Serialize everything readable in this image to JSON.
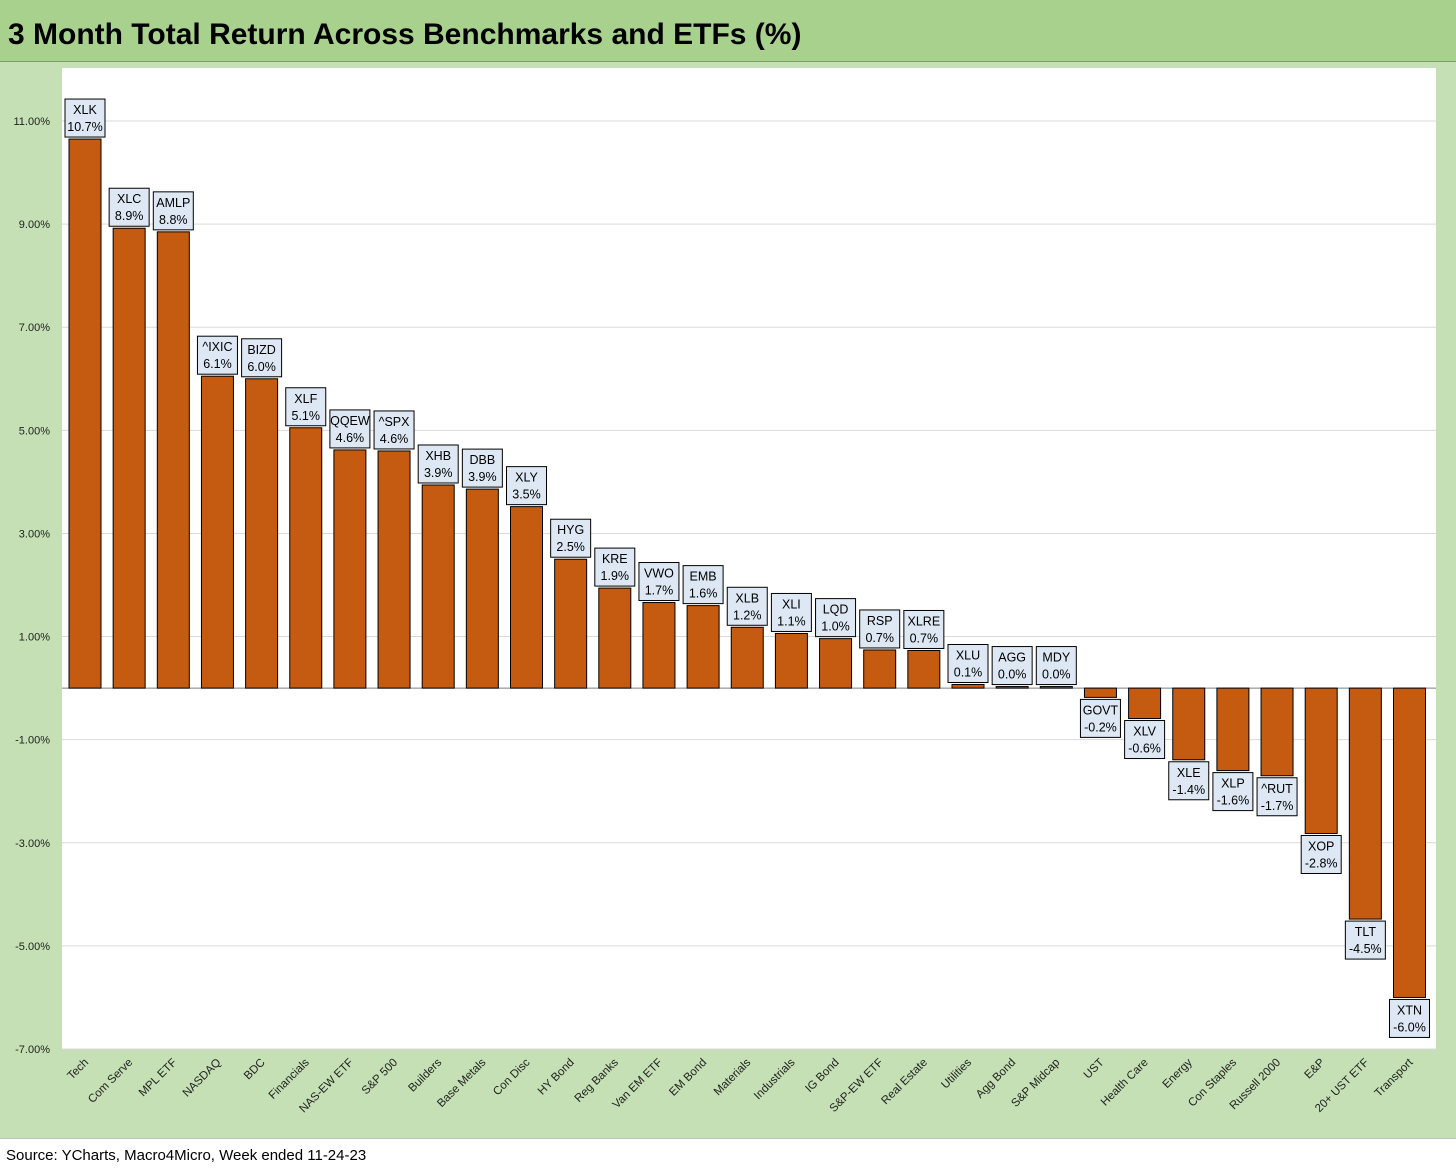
{
  "header": {
    "title": "3 Month Total Return Across Benchmarks and ETFs (%)"
  },
  "footer": {
    "source": "Source: YCharts, Macro4Micro, Week ended 11-24-23"
  },
  "colors": {
    "bar": "#c55a11",
    "frame": "#c5e0b4",
    "title_bar": "#a9d18e",
    "label_box": "#dde8f4"
  },
  "chart_data": {
    "type": "bar",
    "title": "3 Month Total Return Across Benchmarks and ETFs (%)",
    "ylim": [
      -7,
      12
    ],
    "yticks": [
      11,
      9,
      7,
      5,
      3,
      1,
      -1,
      -3,
      -5,
      -7
    ],
    "ytick_labels": [
      "11.00%",
      "9.00%",
      "7.00%",
      "5.00%",
      "3.00%",
      "1.00%",
      "-1.00%",
      "-3.00%",
      "-5.00%",
      "-7.00%"
    ],
    "grid": true,
    "categories": [
      "Tech",
      "Com Serve",
      "MPL ETF",
      "NASDAQ",
      "BDC",
      "Financials",
      "NAS-EW ETF",
      "S&P 500",
      "Builders",
      "Base Metals",
      "Con Disc",
      "HY Bond",
      "Reg Banks",
      "Van EM ETF",
      "EM Bond",
      "Materials",
      "Industrials",
      "IG Bond",
      "S&P-EW ETF",
      "Real Estate",
      "Utilities",
      "Agg Bond",
      "S&P Midcap",
      "UST",
      "Health Care",
      "Energy",
      "Con Staples",
      "Russell 2000",
      "E&P",
      "20+ UST ETF",
      "Transport"
    ],
    "tickers": [
      "XLK",
      "XLC",
      "AMLP",
      "^IXIC",
      "BIZD",
      "XLF",
      "QQEW",
      "^SPX",
      "XHB",
      "DBB",
      "XLY",
      "HYG",
      "KRE",
      "VWO",
      "EMB",
      "XLB",
      "XLI",
      "LQD",
      "RSP",
      "XLRE",
      "XLU",
      "AGG",
      "MDY",
      "GOVT",
      "XLV",
      "XLE",
      "XLP",
      "^RUT",
      "XOP",
      "TLT",
      "XTN"
    ],
    "value_labels": [
      "10.7%",
      "8.9%",
      "8.8%",
      "6.1%",
      "6.0%",
      "5.1%",
      "4.6%",
      "4.6%",
      "3.9%",
      "3.9%",
      "3.5%",
      "2.5%",
      "1.9%",
      "1.7%",
      "1.6%",
      "1.2%",
      "1.1%",
      "1.0%",
      "0.7%",
      "0.7%",
      "0.1%",
      "0.0%",
      "0.0%",
      "-0.2%",
      "-0.6%",
      "-1.4%",
      "-1.6%",
      "-1.7%",
      "-2.8%",
      "-4.5%",
      "-6.0%"
    ],
    "values": [
      10.65,
      8.92,
      8.85,
      6.05,
      6.0,
      5.05,
      4.62,
      4.6,
      3.94,
      3.86,
      3.52,
      2.5,
      1.94,
      1.66,
      1.6,
      1.18,
      1.06,
      0.96,
      0.74,
      0.73,
      0.07,
      0.03,
      0.03,
      -0.18,
      -0.59,
      -1.39,
      -1.6,
      -1.7,
      -2.82,
      -4.48,
      -6.0
    ]
  }
}
